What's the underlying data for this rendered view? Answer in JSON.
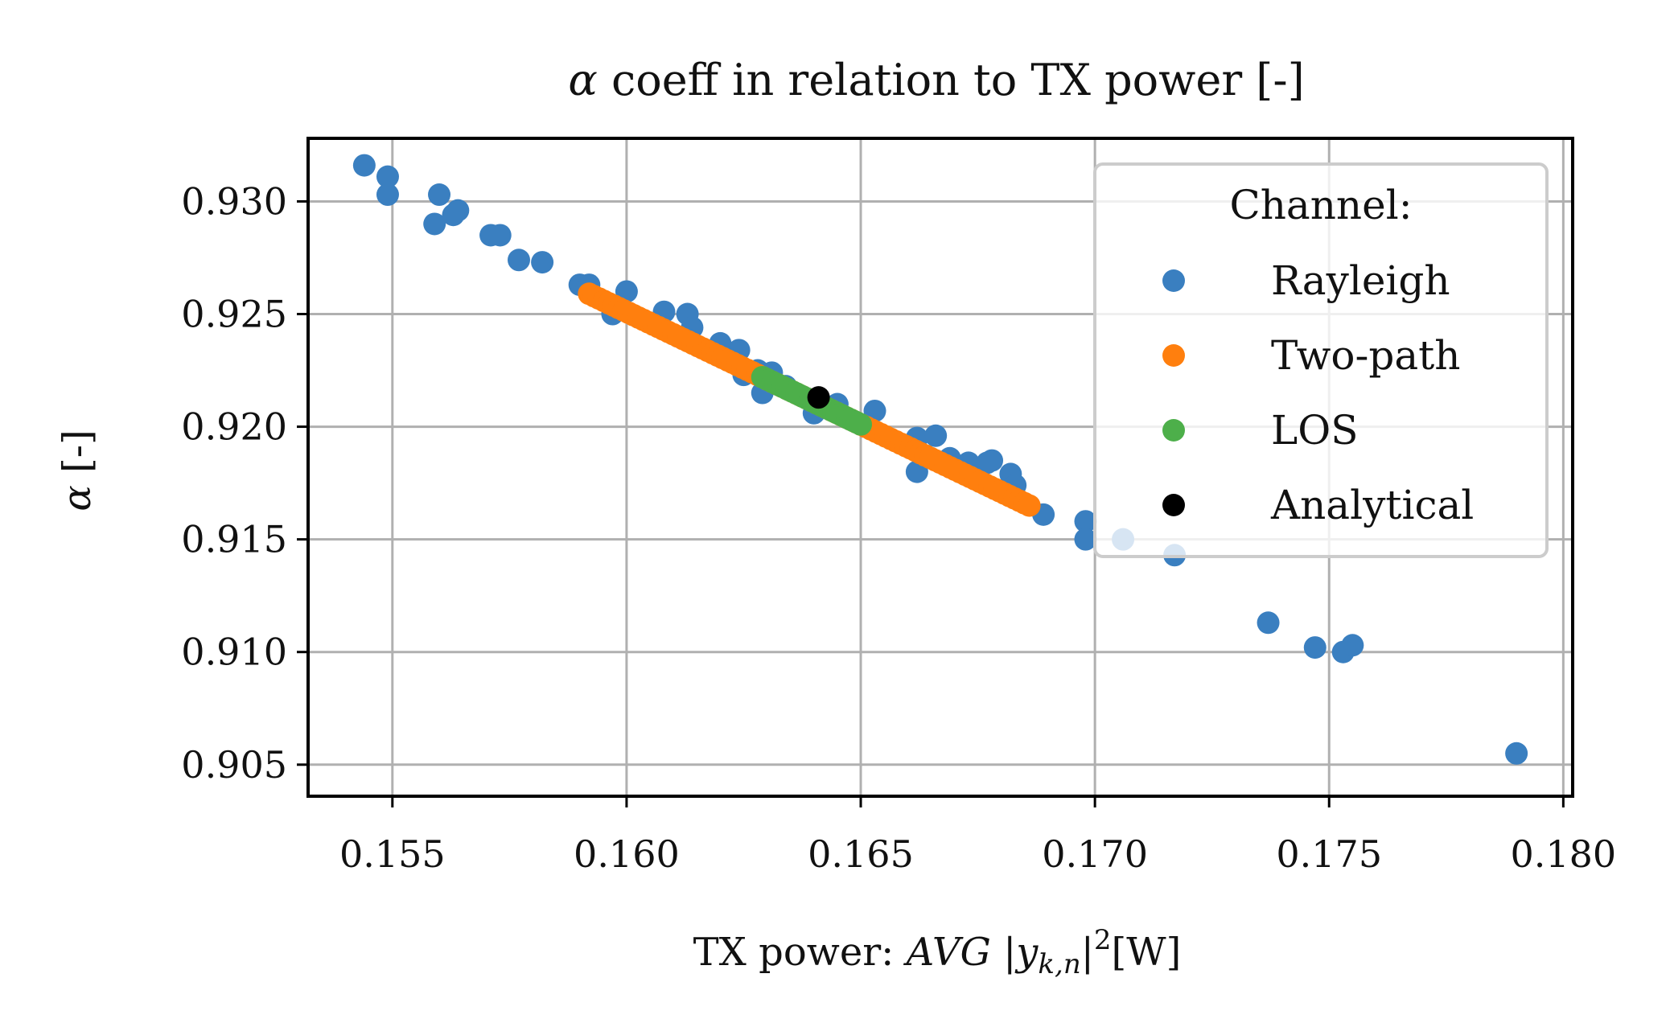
{
  "chart_data": {
    "type": "scatter",
    "title_symbol": "α",
    "title_text": " coeff in relation to TX power [-]",
    "xlabel_prefix": "TX power: ",
    "xlabel_math": "AVG |y",
    "xlabel_sub": "k,n",
    "xlabel_tail": "|",
    "xlabel_sup": "2",
    "xlabel_unit": "[W]",
    "ylabel_symbol": "α",
    "ylabel_text": " [-]",
    "xlim": [
      0.1532,
      0.1802
    ],
    "ylim": [
      0.9036,
      0.9328
    ],
    "xticks": [
      0.155,
      0.16,
      0.165,
      0.17,
      0.175,
      0.18
    ],
    "xtick_labels": [
      "0.155",
      "0.160",
      "0.165",
      "0.170",
      "0.175",
      "0.180"
    ],
    "yticks": [
      0.905,
      0.91,
      0.915,
      0.92,
      0.925,
      0.93
    ],
    "ytick_labels": [
      "0.905",
      "0.910",
      "0.915",
      "0.920",
      "0.925",
      "0.930"
    ],
    "grid": true,
    "legend": {
      "title": "Channel:",
      "position": "top-right",
      "entries": [
        "Rayleigh",
        "Two-path",
        "LOS",
        "Analytical"
      ]
    },
    "series": [
      {
        "name": "Rayleigh",
        "color": "#3a7fc0",
        "points": [
          [
            0.1544,
            0.9316
          ],
          [
            0.1549,
            0.9311
          ],
          [
            0.1549,
            0.9303
          ],
          [
            0.156,
            0.9303
          ],
          [
            0.1559,
            0.929
          ],
          [
            0.1564,
            0.9296
          ],
          [
            0.1563,
            0.9294
          ],
          [
            0.1571,
            0.9285
          ],
          [
            0.1573,
            0.9285
          ],
          [
            0.1577,
            0.9274
          ],
          [
            0.1582,
            0.9273
          ],
          [
            0.159,
            0.9263
          ],
          [
            0.1592,
            0.9263
          ],
          [
            0.16,
            0.926
          ],
          [
            0.1597,
            0.925
          ],
          [
            0.1608,
            0.9251
          ],
          [
            0.1613,
            0.925
          ],
          [
            0.1614,
            0.9244
          ],
          [
            0.162,
            0.9237
          ],
          [
            0.1624,
            0.9234
          ],
          [
            0.1628,
            0.9225
          ],
          [
            0.1631,
            0.9224
          ],
          [
            0.1625,
            0.9223
          ],
          [
            0.1629,
            0.9215
          ],
          [
            0.1634,
            0.9218
          ],
          [
            0.164,
            0.9206
          ],
          [
            0.1645,
            0.921
          ],
          [
            0.1653,
            0.9207
          ],
          [
            0.1662,
            0.9195
          ],
          [
            0.1666,
            0.9196
          ],
          [
            0.1662,
            0.918
          ],
          [
            0.1669,
            0.9186
          ],
          [
            0.1673,
            0.9184
          ],
          [
            0.1677,
            0.9184
          ],
          [
            0.1678,
            0.9185
          ],
          [
            0.1682,
            0.9179
          ],
          [
            0.1683,
            0.9174
          ],
          [
            0.1689,
            0.9161
          ],
          [
            0.1698,
            0.9158
          ],
          [
            0.1698,
            0.915
          ],
          [
            0.1706,
            0.915
          ],
          [
            0.1717,
            0.9143
          ],
          [
            0.1737,
            0.9113
          ],
          [
            0.1747,
            0.9102
          ],
          [
            0.1753,
            0.91
          ],
          [
            0.1755,
            0.9103
          ],
          [
            0.179,
            0.9055
          ]
        ]
      },
      {
        "name": "Two-path",
        "color": "#ff7f0e",
        "line_from": [
          0.1592,
          0.9259
        ],
        "line_to": [
          0.1686,
          0.9165
        ],
        "count": 90
      },
      {
        "name": "LOS",
        "color": "#4daf4a",
        "line_from": [
          0.1629,
          0.9222
        ],
        "line_to": [
          0.165,
          0.9201
        ],
        "count": 30
      },
      {
        "name": "Analytical",
        "color": "#000000",
        "points": [
          [
            0.1641,
            0.9213
          ]
        ]
      }
    ]
  }
}
